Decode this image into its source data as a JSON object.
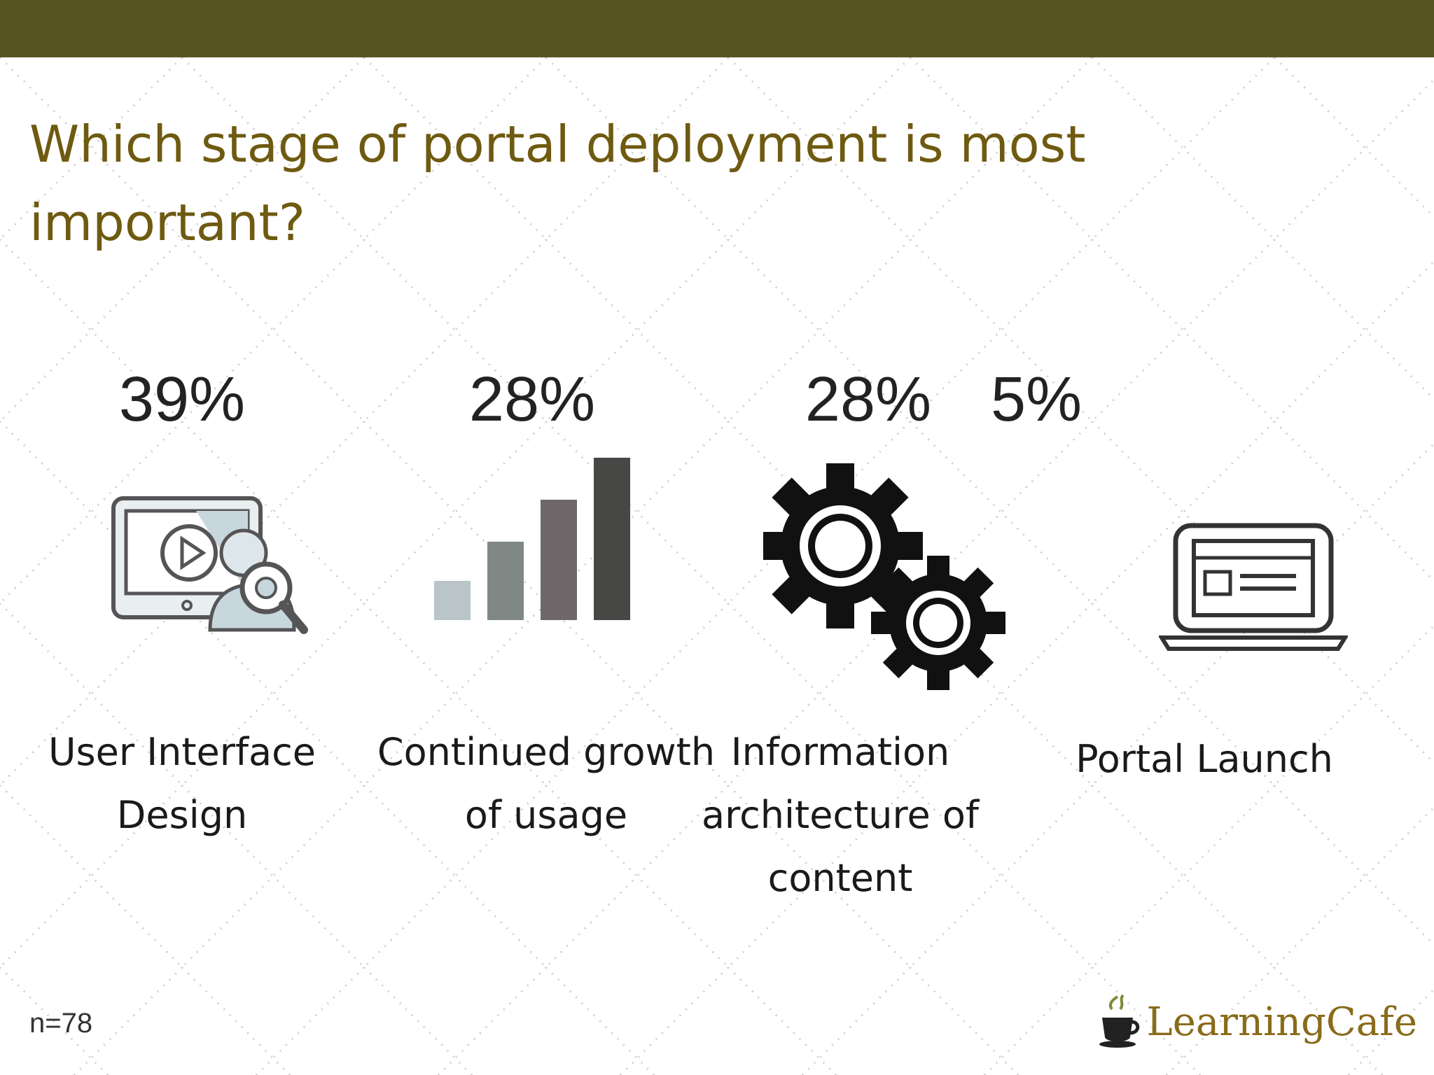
{
  "header": {
    "bar_color": "#585421"
  },
  "title": "Which stage of portal deployment is most important?",
  "stages": [
    {
      "percent": "39%",
      "value": 39,
      "label": "User Interface Design",
      "icon": "monitor-search-icon"
    },
    {
      "percent": "28%",
      "value": 28,
      "label": "Continued growth of usage",
      "icon": "bar-chart-icon"
    },
    {
      "percent": "28%",
      "value": 28,
      "label": "Information architecture of content",
      "icon": "gears-icon"
    },
    {
      "percent": "5%",
      "value": 5,
      "label": "Portal Launch",
      "icon": "laptop-icon"
    }
  ],
  "footnote": "n=78",
  "logo": {
    "text": "LearningCafe",
    "icon": "coffee-cup-icon"
  },
  "colors": {
    "title": "#6e5a10",
    "text": "#1a1a1a",
    "accent": "#585421"
  }
}
